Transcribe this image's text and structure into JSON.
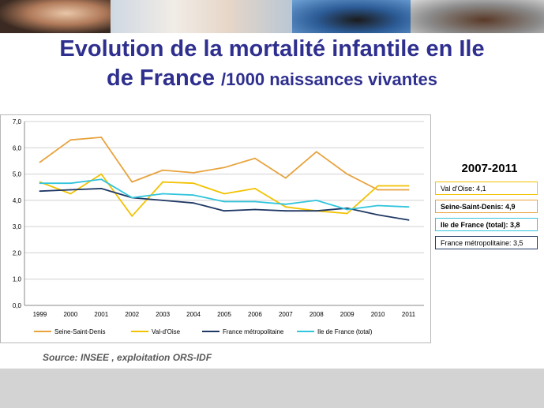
{
  "header": {
    "title_line1": "Evolution de la mortalité infantile en Ile",
    "title_line2_main": "de France ",
    "title_line2_suffix": "/1000 naissances vivantes"
  },
  "side_panel": {
    "period": "2007-2011",
    "callouts": [
      {
        "text": "Val d'Oise: 4,1",
        "border": "#f2c200",
        "bold": false
      },
      {
        "text": "Seine-Saint-Denis: 4,9",
        "border": "#e8a33d",
        "bold": true
      },
      {
        "text": "Ile de France (total): 3,8",
        "border": "#31c4dc",
        "bold": true
      },
      {
        "text": "France métropolitaine:  3,5",
        "border": "#1f3864",
        "bold": false
      }
    ]
  },
  "source": "Source: INSEE , exploitation ORS-IDF",
  "chart_data": {
    "type": "line",
    "x": [
      "1999",
      "2000",
      "2001",
      "2002",
      "2003",
      "2004",
      "2005",
      "2006",
      "2007",
      "2008",
      "2009",
      "2010",
      "2011"
    ],
    "y_ticks": [
      "0,0",
      "1,0",
      "2,0",
      "3,0",
      "4,0",
      "5,0",
      "6,0",
      "7,0"
    ],
    "ylim": [
      0,
      7
    ],
    "grid": true,
    "legend_position": "bottom",
    "series": [
      {
        "name": "Seine-Saint-Denis",
        "color": "#e8a33d",
        "values": [
          5.45,
          6.3,
          6.4,
          4.7,
          5.15,
          5.05,
          5.25,
          5.6,
          4.85,
          5.85,
          5.0,
          4.4,
          4.4
        ]
      },
      {
        "name": "Val-d'Oise",
        "color": "#f2c200",
        "values": [
          4.7,
          4.25,
          5.0,
          3.4,
          4.7,
          4.65,
          4.25,
          4.45,
          3.75,
          3.6,
          3.5,
          4.55,
          4.55
        ]
      },
      {
        "name": "France métropolitaine",
        "color": "#1f3864",
        "values": [
          4.35,
          4.4,
          4.45,
          4.1,
          4.0,
          3.9,
          3.6,
          3.65,
          3.6,
          3.6,
          3.7,
          3.45,
          3.25
        ]
      },
      {
        "name": "Ile de France (total)",
        "color": "#31c4dc",
        "values": [
          4.65,
          4.65,
          4.8,
          4.1,
          4.25,
          4.2,
          3.95,
          3.95,
          3.85,
          4.0,
          3.65,
          3.8,
          3.75
        ]
      }
    ]
  }
}
